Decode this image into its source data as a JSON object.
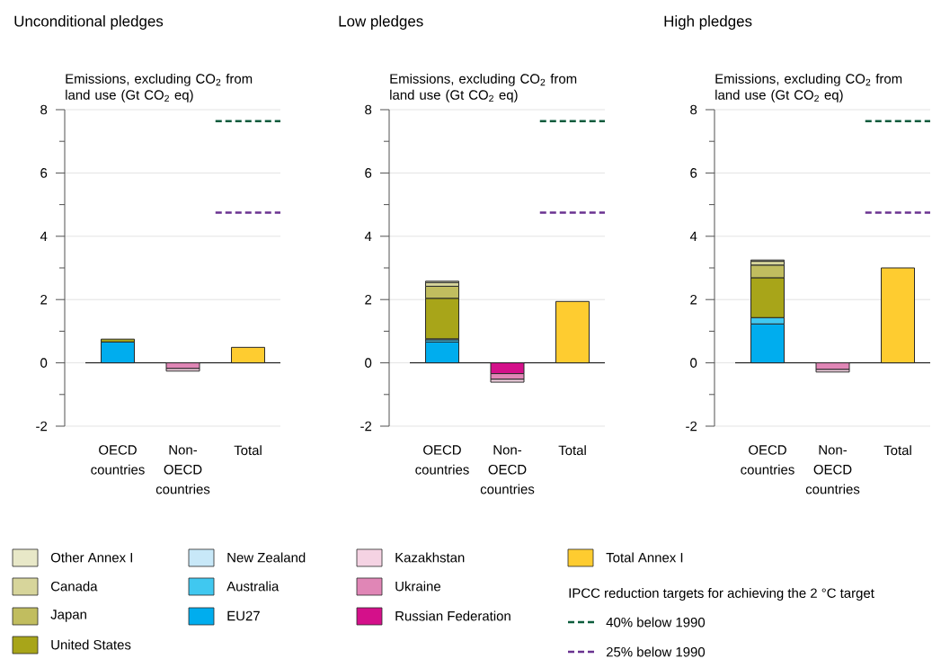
{
  "chart_data": [
    {
      "type": "bar",
      "title": "Unconditional pledges",
      "ylabel": "Emissions, excluding CO$_{2}$ from land use (Gt CO$_{2}$ eq)",
      "stacked": true,
      "grid": "y",
      "legend": "bottom",
      "categories": [
        "OECD countries",
        "Non-OECD countries",
        "Total"
      ],
      "ylim": [
        -2,
        8
      ],
      "yticks": [
        -2,
        {
          "value": -1,
          "label": null
        },
        0,
        {
          "value": 1,
          "label": null
        },
        2,
        {
          "value": 3,
          "label": null
        },
        4,
        {
          "value": 5,
          "label": null
        },
        6,
        {
          "value": 7,
          "label": null
        },
        8
      ],
      "series": [
        {
          "name": "EU27",
          "color": "#00adee",
          "values": [
            0.66,
            null,
            null
          ]
        },
        {
          "name": "Australia",
          "color": "#40c8f0",
          "values": [
            null,
            null,
            null
          ]
        },
        {
          "name": "New Zealand",
          "color": "#c8e8f8",
          "values": [
            null,
            null,
            null
          ]
        },
        {
          "name": "United States",
          "color": "#a8a519",
          "values": [
            0.09,
            null,
            null
          ]
        },
        {
          "name": "Japan",
          "color": "#c1bd5f",
          "values": [
            null,
            null,
            null
          ]
        },
        {
          "name": "Canada",
          "color": "#d7d59b",
          "values": [
            null,
            null,
            null
          ]
        },
        {
          "name": "Other Annex I",
          "color": "#e8e8c8",
          "values": [
            null,
            null,
            null
          ]
        },
        {
          "name": "Russian Federation",
          "color": "#d4108a",
          "values": [
            null,
            null,
            null
          ]
        },
        {
          "name": "Ukraine",
          "color": "#e086b6",
          "values": [
            null,
            -0.18,
            null
          ]
        },
        {
          "name": "Kazakhstan",
          "color": "#f5d3e3",
          "values": [
            null,
            -0.08,
            null
          ]
        },
        {
          "name": "Total Annex I",
          "color": "#fecc30",
          "values": [
            null,
            null,
            0.49
          ]
        }
      ],
      "ref_lines": [
        {
          "axis": "y",
          "value": 7.64,
          "label": "40% below 1990",
          "color": "#0c5c3c",
          "line_style": "dashed"
        },
        {
          "axis": "y",
          "value": 4.75,
          "label": "25% below 1990",
          "color": "#6a3290",
          "line_style": "dashed"
        }
      ],
      "annotations": [
        "IPCC reduction targets for achieving the 2 °C target"
      ]
    },
    {
      "type": "bar",
      "title": "Low pledges",
      "ylabel": "Emissions, excluding CO$_{2}$ from land use (Gt CO$_{2}$ eq)",
      "stacked": true,
      "grid": "y",
      "categories": [
        "OECD countries",
        "Non-OECD countries",
        "Total"
      ],
      "ylim": [
        -2,
        8
      ],
      "yticks": [
        -2,
        {
          "value": -1,
          "label": null
        },
        0,
        {
          "value": 1,
          "label": null
        },
        2,
        {
          "value": 3,
          "label": null
        },
        4,
        {
          "value": 5,
          "label": null
        },
        6,
        {
          "value": 7,
          "label": null
        },
        8
      ],
      "series": [
        {
          "color": "#00adee",
          "values": [
            0.66,
            null,
            null
          ]
        },
        {
          "color": "#40c8f0",
          "values": [
            0.07,
            null,
            null
          ]
        },
        {
          "color": "#c8e8f8",
          "values": [
            0.03,
            null,
            null
          ]
        },
        {
          "color": "#a8a519",
          "values": [
            1.28,
            null,
            null
          ]
        },
        {
          "color": "#c1bd5f",
          "values": [
            0.38,
            null,
            null
          ]
        },
        {
          "color": "#d7d59b",
          "values": [
            0.12,
            null,
            null
          ]
        },
        {
          "color": "#e8e8c8",
          "values": [
            0.04,
            null,
            null
          ]
        },
        {
          "color": "#d4108a",
          "values": [
            null,
            -0.34,
            null
          ]
        },
        {
          "color": "#e086b6",
          "values": [
            null,
            -0.18,
            null
          ]
        },
        {
          "color": "#f5d3e3",
          "values": [
            null,
            -0.09,
            null
          ]
        },
        {
          "color": "#fecc30",
          "values": [
            null,
            null,
            1.94
          ]
        }
      ],
      "ref_lines": [
        {
          "axis": "y",
          "value": 7.64,
          "color": "#0c5c3c",
          "line_style": "dashed"
        },
        {
          "axis": "y",
          "value": 4.75,
          "color": "#6a3290",
          "line_style": "dashed"
        }
      ]
    },
    {
      "type": "bar",
      "title": "High pledges",
      "ylabel": "Emissions, excluding CO$_{2}$ from land use (Gt CO$_{2}$ eq)",
      "stacked": true,
      "grid": "y",
      "categories": [
        "OECD countries",
        "Non-OECD countries",
        "Total"
      ],
      "ylim": [
        -2,
        8
      ],
      "yticks": [
        -2,
        {
          "value": -1,
          "label": null
        },
        0,
        {
          "value": 1,
          "label": null
        },
        2,
        {
          "value": 3,
          "label": null
        },
        4,
        {
          "value": 5,
          "label": null
        },
        6,
        {
          "value": 7,
          "label": null
        },
        8
      ],
      "series": [
        {
          "color": "#00adee",
          "values": [
            1.23,
            null,
            null
          ]
        },
        {
          "color": "#40c8f0",
          "values": [
            0.2,
            null,
            null
          ]
        },
        {
          "color": "#a8a519",
          "values": [
            1.26,
            null,
            null
          ]
        },
        {
          "color": "#c1bd5f",
          "values": [
            0.4,
            null,
            null
          ]
        },
        {
          "color": "#d7d59b",
          "values": [
            0.12,
            null,
            null
          ]
        },
        {
          "color": "#e8e8c8",
          "values": [
            0.04,
            null,
            null
          ]
        },
        {
          "color": "#e086b6",
          "values": [
            null,
            -0.21,
            null
          ]
        },
        {
          "color": "#f5d3e3",
          "values": [
            null,
            -0.08,
            null
          ]
        },
        {
          "color": "#fecc30",
          "values": [
            null,
            null,
            3.0
          ]
        }
      ],
      "ref_lines": [
        {
          "axis": "y",
          "value": 7.64,
          "color": "#0c5c3c",
          "line_style": "dashed"
        },
        {
          "axis": "y",
          "value": 4.75,
          "color": "#6a3290",
          "line_style": "dashed"
        }
      ]
    }
  ]
}
